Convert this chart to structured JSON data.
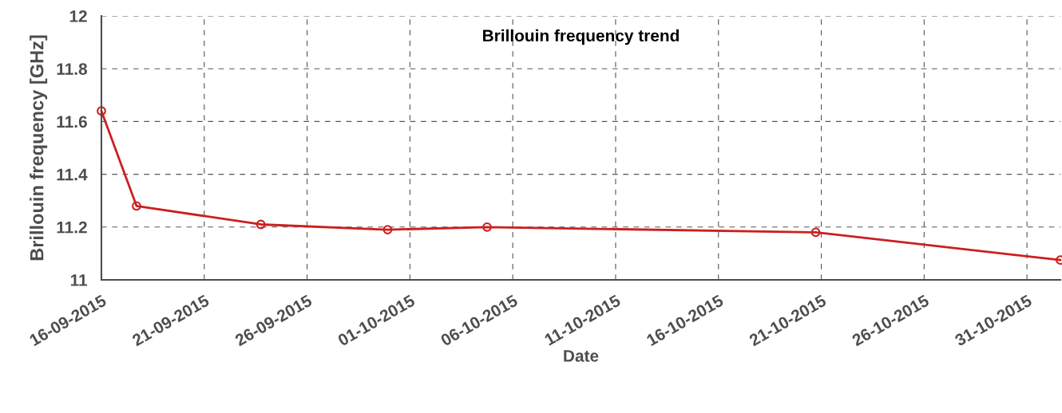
{
  "chart_data": {
    "type": "line",
    "title": "Brillouin frequency trend",
    "xlabel": "Date",
    "ylabel": "Brillouin frequency [GHz]",
    "x": [
      "2015-09-16T00:00",
      "2015-09-17T17:00",
      "2015-09-23T18:00",
      "2015-09-29T22:00",
      "2015-10-04T18:00",
      "2015-10-20T17:30",
      "2015-11-01T15:00"
    ],
    "series": [
      {
        "color": "#cc1f1f",
        "values": [
          11.64,
          11.28,
          11.21,
          11.19,
          11.2,
          11.18,
          11.075
        ]
      }
    ],
    "marker": "circle",
    "line_style": "solid",
    "grid": true,
    "xlim": [
      "2015-09-16",
      "2015-11-01T15:00"
    ],
    "xticks": [
      {
        "value": "2015-09-16",
        "label": "16-09-2015"
      },
      {
        "value": "2015-09-21",
        "label": "21-09-2015"
      },
      {
        "value": "2015-09-26",
        "label": "26-09-2015"
      },
      {
        "value": "2015-10-01",
        "label": "01-10-2015"
      },
      {
        "value": "2015-10-06",
        "label": "06-10-2015"
      },
      {
        "value": "2015-10-11",
        "label": "11-10-2015"
      },
      {
        "value": "2015-10-16",
        "label": "16-10-2015"
      },
      {
        "value": "2015-10-21",
        "label": "21-10-2015"
      },
      {
        "value": "2015-10-26",
        "label": "26-10-2015"
      },
      {
        "value": "2015-10-31",
        "label": "31-10-2015"
      }
    ],
    "ylim": [
      11,
      12
    ],
    "yticks": [
      11,
      11.2,
      11.4,
      11.6,
      11.8,
      12
    ]
  }
}
